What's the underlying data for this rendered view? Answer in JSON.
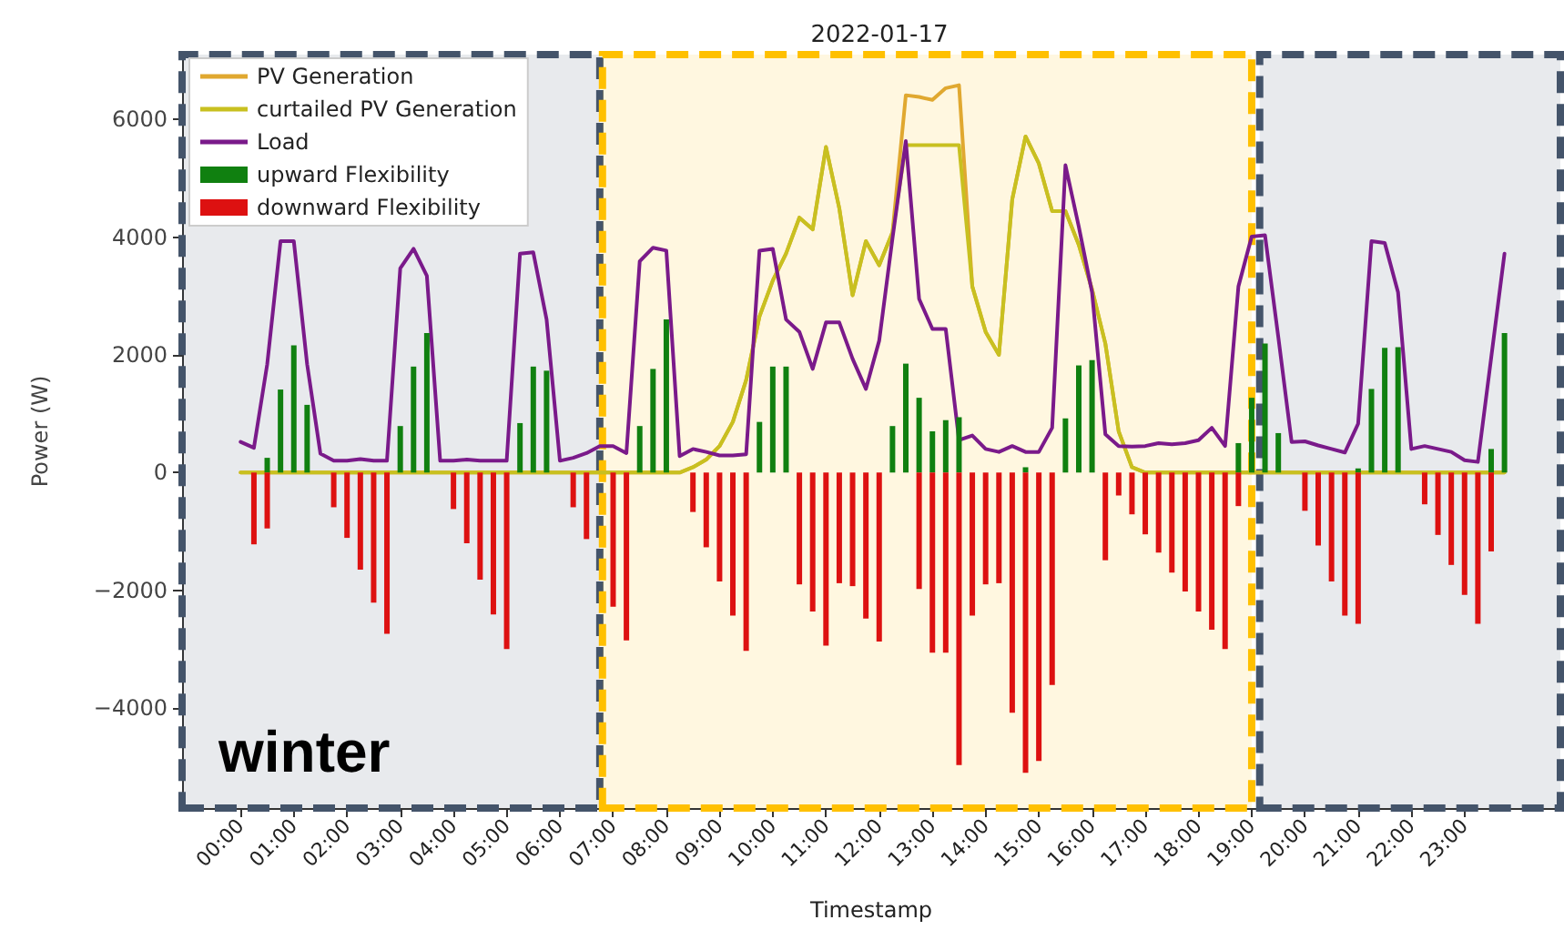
{
  "chart_data": {
    "type": "line",
    "title": "2022-01-17",
    "xlabel": "Timestamp",
    "ylabel": "Power (W)",
    "x": [
      0,
      0.25,
      0.5,
      0.75,
      1,
      1.25,
      1.5,
      1.75,
      2,
      2.25,
      2.5,
      2.75,
      3,
      3.25,
      3.5,
      3.75,
      4,
      4.25,
      4.5,
      4.75,
      5,
      5.25,
      5.5,
      5.75,
      6,
      6.25,
      6.5,
      6.75,
      7,
      7.25,
      7.5,
      7.75,
      8,
      8.25,
      8.5,
      8.75,
      9,
      9.25,
      9.5,
      9.75,
      10,
      10.25,
      10.5,
      10.75,
      11,
      11.25,
      11.5,
      11.75,
      12,
      12.25,
      12.5,
      12.75,
      13,
      13.25,
      13.5,
      13.75,
      14,
      14.25,
      14.5,
      14.75,
      15,
      15.25,
      15.5,
      15.75,
      16,
      16.25,
      16.5,
      16.75,
      17,
      17.25,
      17.5,
      17.75,
      18,
      18.25,
      18.5,
      18.75,
      19,
      19.25,
      19.5,
      19.75,
      20,
      20.25,
      20.5,
      20.75,
      21,
      21.25,
      21.5,
      21.75,
      22,
      22.25,
      22.5,
      22.75,
      23,
      23.25,
      23.5,
      23.75
    ],
    "series": [
      {
        "name": "PV Generation",
        "color": "#e0a830",
        "values": [
          0,
          0,
          0,
          0,
          0,
          0,
          0,
          0,
          0,
          0,
          0,
          0,
          0,
          0,
          0,
          0,
          0,
          0,
          0,
          0,
          0,
          0,
          0,
          0,
          0,
          0,
          0,
          0,
          0,
          0,
          0,
          0,
          0,
          0,
          90,
          220,
          450,
          860,
          1570,
          2650,
          3260,
          3720,
          4330,
          4130,
          5530,
          4490,
          3010,
          3930,
          3520,
          4080,
          6410,
          6380,
          6330,
          6530,
          6580,
          3160,
          2390,
          2000,
          4640,
          5710,
          5250,
          4440,
          4440,
          3870,
          3110,
          2190,
          700,
          90,
          0,
          0,
          0,
          0,
          0,
          0,
          0,
          0,
          0,
          0,
          0,
          0,
          0,
          0,
          0,
          0,
          0,
          0,
          0,
          0,
          0,
          0,
          0,
          0,
          0,
          0,
          0,
          0
        ]
      },
      {
        "name": "curtailed PV Generation",
        "color": "#c8c020",
        "values": [
          0,
          0,
          0,
          0,
          0,
          0,
          0,
          0,
          0,
          0,
          0,
          0,
          0,
          0,
          0,
          0,
          0,
          0,
          0,
          0,
          0,
          0,
          0,
          0,
          0,
          0,
          0,
          0,
          0,
          0,
          0,
          0,
          0,
          0,
          90,
          220,
          450,
          860,
          1570,
          2650,
          3260,
          3720,
          4330,
          4130,
          5530,
          4490,
          3010,
          3930,
          3520,
          4080,
          5560,
          5560,
          5560,
          5560,
          5560,
          3160,
          2390,
          2000,
          4640,
          5710,
          5250,
          4440,
          4440,
          3870,
          3110,
          2190,
          700,
          90,
          0,
          0,
          0,
          0,
          0,
          0,
          0,
          0,
          0,
          0,
          0,
          0,
          0,
          0,
          0,
          0,
          0,
          0,
          0,
          0,
          0,
          0,
          0,
          0,
          0,
          0,
          0,
          0
        ]
      },
      {
        "name": "Load",
        "color": "#7a1a8a",
        "values": [
          520,
          420,
          1840,
          3930,
          3930,
          1840,
          320,
          200,
          200,
          230,
          200,
          200,
          3470,
          3800,
          3340,
          200,
          200,
          220,
          200,
          200,
          200,
          3720,
          3740,
          2600,
          200,
          250,
          330,
          450,
          450,
          330,
          3590,
          3820,
          3770,
          280,
          400,
          350,
          290,
          290,
          310,
          3770,
          3800,
          2600,
          2390,
          1760,
          2550,
          2550,
          1930,
          1420,
          2240,
          3980,
          5630,
          2950,
          2440,
          2440,
          550,
          630,
          400,
          350,
          450,
          350,
          350,
          760,
          5220,
          4180,
          3060,
          650,
          450,
          440,
          450,
          500,
          480,
          500,
          550,
          760,
          450,
          3160,
          4010,
          4030,
          2300,
          520,
          530,
          460,
          400,
          340,
          830,
          3930,
          3900,
          3060,
          400,
          450,
          400,
          350,
          210,
          180,
          1950,
          3720
        ]
      },
      {
        "name": "upward Flexibility",
        "type": "bar",
        "color": "#108010",
        "x": [
          0.5,
          0.75,
          1,
          1.25,
          3,
          3.25,
          3.5,
          5.25,
          5.5,
          5.75,
          7.5,
          7.75,
          8,
          9.75,
          10,
          10.25,
          12.25,
          12.5,
          12.75,
          13,
          13.25,
          13.5,
          14.75,
          15.5,
          15.75,
          16,
          18.75,
          19,
          19.25,
          19.5,
          21,
          21.25,
          21.5,
          21.75,
          23.5,
          23.75
        ],
        "values": [
          250,
          1410,
          2160,
          1150,
          790,
          1800,
          2370,
          840,
          1800,
          1730,
          790,
          1760,
          2600,
          860,
          1800,
          1800,
          790,
          1850,
          1270,
          700,
          890,
          940,
          90,
          920,
          1820,
          1910,
          500,
          1270,
          2190,
          670,
          70,
          1420,
          2120,
          2130,
          400,
          2370
        ]
      },
      {
        "name": "downward Flexibility",
        "type": "bar",
        "color": "#dd1111",
        "x": [
          0.25,
          0.5,
          1.75,
          2,
          2.25,
          2.5,
          2.75,
          4,
          4.25,
          4.5,
          4.75,
          5,
          6.25,
          6.5,
          7,
          7.25,
          8.5,
          8.75,
          9,
          9.25,
          9.5,
          10.5,
          10.75,
          11,
          11.25,
          11.5,
          11.75,
          12,
          12.75,
          13,
          13.25,
          13.5,
          13.75,
          14,
          14.25,
          14.5,
          14.75,
          15,
          15.25,
          16.25,
          16.5,
          16.75,
          17,
          17.25,
          17.5,
          17.75,
          18,
          18.25,
          18.5,
          18.75,
          20,
          20.25,
          20.5,
          20.75,
          21,
          22.25,
          22.5,
          22.75,
          23,
          23.25,
          23.5
        ],
        "values": [
          -1220,
          -950,
          -590,
          -1110,
          -1650,
          -2210,
          -2740,
          -620,
          -1200,
          -1820,
          -2410,
          -3000,
          -590,
          -1130,
          -2280,
          -2850,
          -670,
          -1270,
          -1850,
          -2430,
          -3030,
          -1900,
          -2360,
          -2940,
          -1880,
          -1930,
          -2480,
          -2870,
          -1980,
          -3060,
          -3060,
          -4970,
          -2430,
          -1900,
          -1880,
          -4080,
          -5100,
          -4900,
          -3610,
          -1490,
          -390,
          -710,
          -1050,
          -1360,
          -1700,
          -2020,
          -2360,
          -2670,
          -3000,
          -570,
          -650,
          -1240,
          -1850,
          -2430,
          -2570,
          -540,
          -1060,
          -1570,
          -2080,
          -2570,
          -1340
        ]
      }
    ],
    "xlim": [
      -1.1,
      24.8
    ],
    "xticks": [
      {
        "value": 0,
        "label": "00:00"
      },
      {
        "value": 1,
        "label": "01:00"
      },
      {
        "value": 2,
        "label": "02:00"
      },
      {
        "value": 3,
        "label": "03:00"
      },
      {
        "value": 4,
        "label": "04:00"
      },
      {
        "value": 5,
        "label": "05:00"
      },
      {
        "value": 6,
        "label": "06:00"
      },
      {
        "value": 7,
        "label": "07:00"
      },
      {
        "value": 8,
        "label": "08:00"
      },
      {
        "value": 9,
        "label": "09:00"
      },
      {
        "value": 10,
        "label": "10:00"
      },
      {
        "value": 11,
        "label": "11:00"
      },
      {
        "value": 12,
        "label": "12:00"
      },
      {
        "value": 13,
        "label": "13:00"
      },
      {
        "value": 14,
        "label": "14:00"
      },
      {
        "value": 15,
        "label": "15:00"
      },
      {
        "value": 16,
        "label": "16:00"
      },
      {
        "value": 17,
        "label": "17:00"
      },
      {
        "value": 18,
        "label": "18:00"
      },
      {
        "value": 19,
        "label": "19:00"
      },
      {
        "value": 20,
        "label": "20:00"
      },
      {
        "value": 21,
        "label": "21:00"
      },
      {
        "value": 22,
        "label": "22:00"
      },
      {
        "value": 23,
        "label": "23:00"
      }
    ],
    "ylim": [
      -5700,
      7100
    ],
    "yticks": [
      {
        "value": -4000,
        "label": "−4000"
      },
      {
        "value": -2000,
        "label": "−2000"
      },
      0,
      2000,
      4000,
      6000
    ],
    "bands": [
      {
        "axis": "x",
        "from": -1.1,
        "to": 6.75,
        "color": "#44546a"
      },
      {
        "axis": "x",
        "from": 6.8,
        "to": 19.0,
        "color": "#ffc000"
      },
      {
        "axis": "x",
        "from": 19.15,
        "to": 24.8,
        "color": "#44546a"
      }
    ],
    "annotations": [
      "winter"
    ],
    "legend": "top left",
    "marker": "none"
  }
}
